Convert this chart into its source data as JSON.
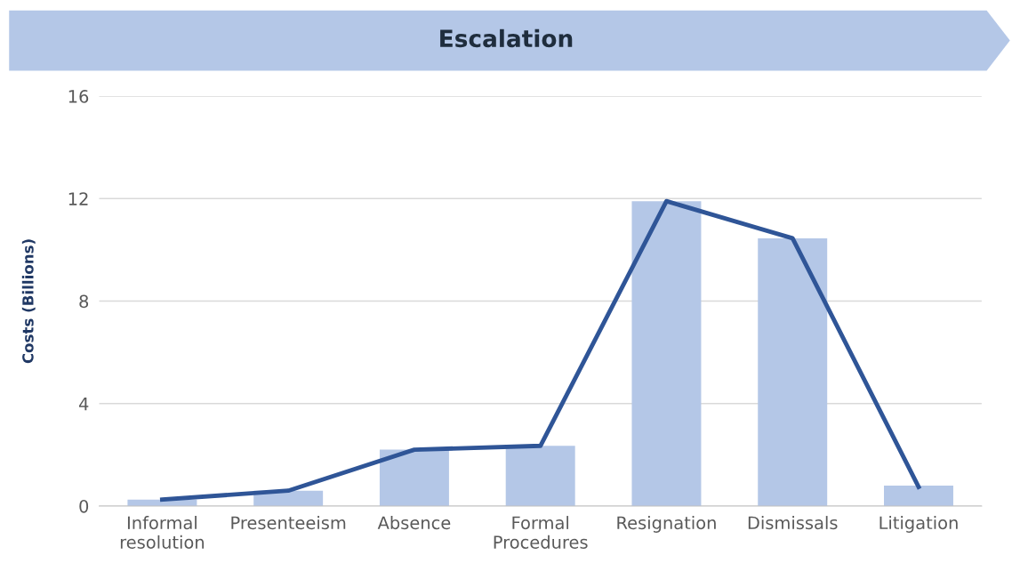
{
  "chart_data": {
    "type": "bar",
    "title": "Escalation",
    "ylabel": "Costs (Billions)",
    "categories": [
      "Informal\nresolution",
      "Presenteeism",
      "Absence",
      "Formal\nProcedures",
      "Resignation",
      "Dismissals",
      "Litigation"
    ],
    "series": [
      {
        "color": "#b4c7e7",
        "values": [
          0.25,
          0.6,
          2.2,
          2.35,
          11.9,
          10.45,
          0.8
        ]
      },
      {
        "type": "line",
        "color": "#2f5597",
        "values": [
          0.25,
          0.6,
          2.2,
          2.35,
          11.9,
          10.45,
          0.75
        ]
      }
    ],
    "ylim": [
      0,
      16
    ],
    "yticks": [
      0,
      4,
      8,
      12,
      16
    ],
    "grid": "y",
    "legend": false,
    "marker": "none",
    "line_style": "solid"
  }
}
